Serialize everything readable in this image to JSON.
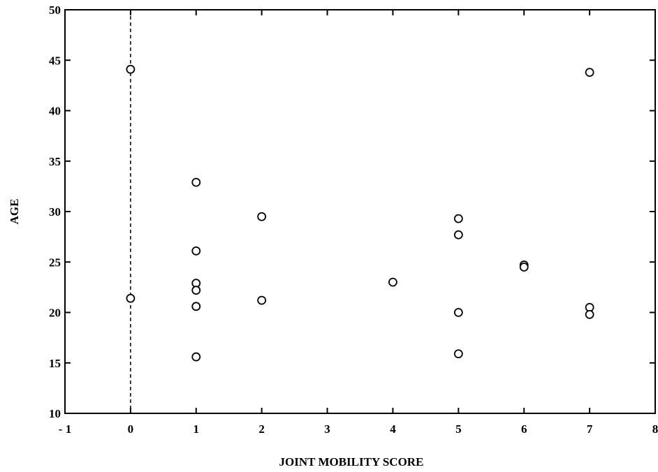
{
  "chart_data": {
    "type": "scatter",
    "title": "",
    "xlabel": "JOINT MOBILITY SCORE",
    "ylabel": "AGE",
    "xlim": [
      -1,
      8
    ],
    "ylim": [
      10,
      50
    ],
    "x_ticks": [
      -1,
      0,
      1,
      2,
      3,
      4,
      5,
      6,
      7,
      8
    ],
    "y_ticks": [
      10,
      15,
      20,
      25,
      30,
      35,
      40,
      45,
      50
    ],
    "x_tick_labels": [
      "- 1",
      "0",
      "1",
      "2",
      "3",
      "4",
      "5",
      "6",
      "7",
      "8"
    ],
    "y_tick_labels": [
      "10",
      "15",
      "20",
      "25",
      "30",
      "35",
      "40",
      "45",
      "50"
    ],
    "grid": false,
    "reference_line": {
      "axis": "x",
      "value": 0,
      "style": "dashed"
    },
    "marker": "open-circle",
    "points": [
      {
        "x": 0,
        "y": 44.1
      },
      {
        "x": 0,
        "y": 21.4
      },
      {
        "x": 1,
        "y": 32.9
      },
      {
        "x": 1,
        "y": 26.1
      },
      {
        "x": 1,
        "y": 22.9
      },
      {
        "x": 1,
        "y": 22.2
      },
      {
        "x": 1,
        "y": 20.6
      },
      {
        "x": 1,
        "y": 15.6
      },
      {
        "x": 2,
        "y": 29.5
      },
      {
        "x": 2,
        "y": 21.2
      },
      {
        "x": 4,
        "y": 23.0
      },
      {
        "x": 5,
        "y": 29.3
      },
      {
        "x": 5,
        "y": 27.7
      },
      {
        "x": 5,
        "y": 20.0
      },
      {
        "x": 5,
        "y": 15.9
      },
      {
        "x": 6,
        "y": 24.7
      },
      {
        "x": 6,
        "y": 24.5
      },
      {
        "x": 7,
        "y": 43.8
      },
      {
        "x": 7,
        "y": 20.5
      },
      {
        "x": 7,
        "y": 19.8
      }
    ]
  }
}
